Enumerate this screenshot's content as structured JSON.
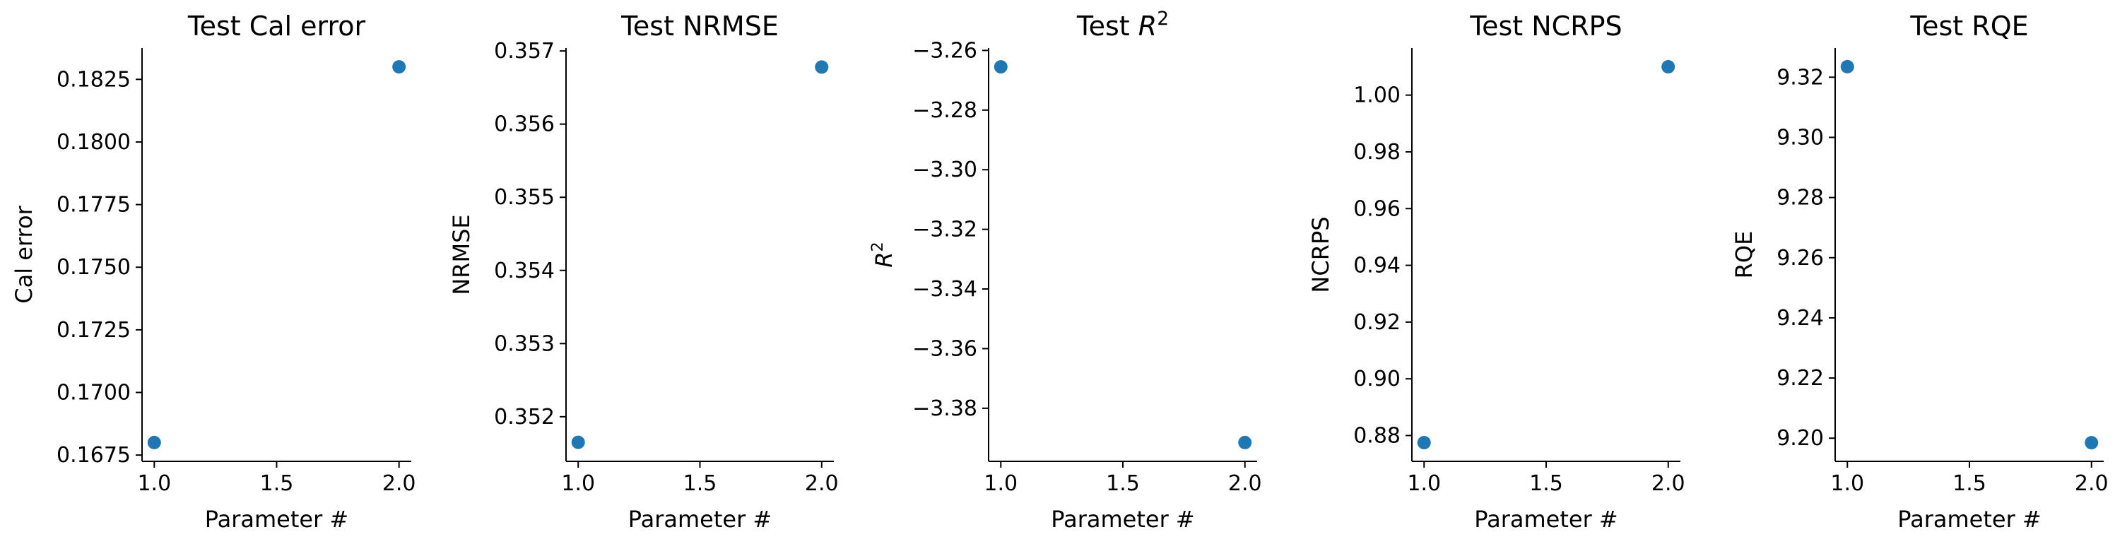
{
  "colors": {
    "point": "#1f77b4",
    "axis": "#000000"
  },
  "chart_data": [
    {
      "type": "scatter",
      "title": "Test Cal error",
      "xlabel": "Parameter #",
      "ylabel": "Cal error",
      "x": [
        1.0,
        2.0
      ],
      "y": [
        0.168,
        0.183
      ],
      "xlim": [
        0.95,
        2.05
      ],
      "ylim": [
        0.16725,
        0.18375
      ],
      "xticks": [
        1.0,
        1.5,
        2.0
      ],
      "xtick_labels": [
        "1.0",
        "1.5",
        "2.0"
      ],
      "yticks": [
        0.1675,
        0.17,
        0.1725,
        0.175,
        0.1775,
        0.18,
        0.1825
      ],
      "ytick_labels": [
        "0.1675",
        "0.1700",
        "0.1725",
        "0.1750",
        "0.1775",
        "0.1800",
        "0.1825"
      ],
      "grid": false
    },
    {
      "type": "scatter",
      "title": "Test NRMSE",
      "xlabel": "Parameter #",
      "ylabel": "NRMSE",
      "x": [
        1.0,
        2.0
      ],
      "y": [
        0.35165,
        0.35678
      ],
      "xlim": [
        0.95,
        2.05
      ],
      "ylim": [
        0.35139,
        0.35704
      ],
      "xticks": [
        1.0,
        1.5,
        2.0
      ],
      "xtick_labels": [
        "1.0",
        "1.5",
        "2.0"
      ],
      "yticks": [
        0.352,
        0.353,
        0.354,
        0.355,
        0.356,
        0.357
      ],
      "ytick_labels": [
        "0.352",
        "0.353",
        "0.354",
        "0.355",
        "0.356",
        "0.357"
      ],
      "grid": false
    },
    {
      "type": "scatter",
      "title": "Test R2",
      "xlabel": "Parameter #",
      "ylabel": "R2",
      "x": [
        1.0,
        2.0
      ],
      "y": [
        -3.2655,
        -3.3915
      ],
      "xlim": [
        0.95,
        2.05
      ],
      "ylim": [
        -3.3978,
        -3.2592
      ],
      "xticks": [
        1.0,
        1.5,
        2.0
      ],
      "xtick_labels": [
        "1.0",
        "1.5",
        "2.0"
      ],
      "yticks": [
        -3.26,
        -3.28,
        -3.3,
        -3.32,
        -3.34,
        -3.36,
        -3.38
      ],
      "ytick_labels": [
        "−3.26",
        "−3.28",
        "−3.30",
        "−3.32",
        "−3.34",
        "−3.36",
        "−3.38"
      ],
      "grid": false
    },
    {
      "type": "scatter",
      "title": "Test NCRPS",
      "xlabel": "Parameter #",
      "ylabel": "NCRPS",
      "x": [
        1.0,
        2.0
      ],
      "y": [
        0.8775,
        1.01
      ],
      "xlim": [
        0.95,
        2.05
      ],
      "ylim": [
        0.8709,
        1.0166
      ],
      "xticks": [
        1.0,
        1.5,
        2.0
      ],
      "xtick_labels": [
        "1.0",
        "1.5",
        "2.0"
      ],
      "yticks": [
        0.88,
        0.9,
        0.92,
        0.94,
        0.96,
        0.98,
        1.0
      ],
      "ytick_labels": [
        "0.88",
        "0.90",
        "0.92",
        "0.94",
        "0.96",
        "0.98",
        "1.00"
      ],
      "grid": false
    },
    {
      "type": "scatter",
      "title": "Test RQE",
      "xlabel": "Parameter #",
      "ylabel": "RQE",
      "x": [
        1.0,
        2.0
      ],
      "y": [
        9.3235,
        9.1985
      ],
      "xlim": [
        0.95,
        2.05
      ],
      "ylim": [
        9.1923,
        9.3297
      ],
      "xticks": [
        1.0,
        1.5,
        2.0
      ],
      "xtick_labels": [
        "1.0",
        "1.5",
        "2.0"
      ],
      "yticks": [
        9.2,
        9.22,
        9.24,
        9.26,
        9.28,
        9.3,
        9.32
      ],
      "ytick_labels": [
        "9.20",
        "9.22",
        "9.24",
        "9.26",
        "9.28",
        "9.30",
        "9.32"
      ],
      "grid": false
    }
  ]
}
